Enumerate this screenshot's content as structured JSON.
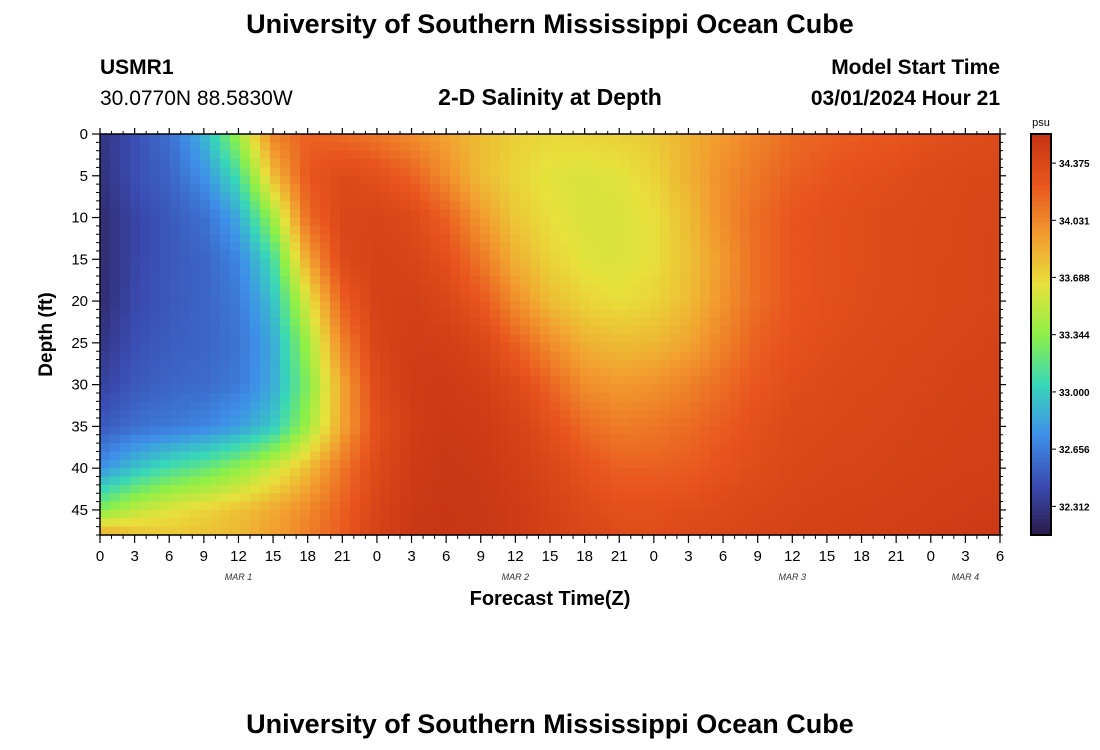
{
  "page": {
    "title_top": "University of Southern Mississippi Ocean Cube",
    "title_bottom": "University of Southern Mississippi Ocean Cube"
  },
  "header": {
    "station": "USMR1",
    "coords": "30.0770N  88.5830W",
    "plot_title": "2-D Salinity at Depth",
    "model_start_label": "Model Start Time",
    "model_start_value": "03/01/2024 Hour 21"
  },
  "chart_data": {
    "type": "heatmap",
    "title": "2-D Salinity at Depth",
    "xlabel": "Forecast Time(Z)",
    "ylabel": "Depth (ft)",
    "x_tick_labels": [
      "0",
      "3",
      "6",
      "9",
      "12",
      "15",
      "18",
      "21",
      "0",
      "3",
      "6",
      "9",
      "12",
      "15",
      "18",
      "21",
      "0",
      "3",
      "6",
      "9",
      "12",
      "15",
      "18",
      "21",
      "0",
      "3",
      "6"
    ],
    "date_labels": [
      {
        "label": "MAR 1",
        "at_hour": 12
      },
      {
        "label": "MAR 2",
        "at_hour": 36
      },
      {
        "label": "MAR 3",
        "at_hour": 60
      },
      {
        "label": "MAR 4",
        "at_hour": 75
      }
    ],
    "x_range_hours": [
      0,
      78
    ],
    "y_ticks": [
      0,
      5,
      10,
      15,
      20,
      25,
      30,
      35,
      40,
      45
    ],
    "y_range_ft": [
      0,
      48
    ],
    "colorbar": {
      "unit": "psu",
      "ticks": [
        34.375,
        34.031,
        33.688,
        33.344,
        33.0,
        32.656,
        32.312
      ],
      "tick_labels": [
        "34.375",
        "34.031",
        "33.688",
        "33.344",
        "33.000",
        "32.656",
        "32.312"
      ],
      "range": [
        32.14,
        34.55
      ]
    },
    "colormap": [
      "#2b1a4a",
      "#3a4cb2",
      "#3e8fe9",
      "#38d7b9",
      "#8ef046",
      "#e8e03b",
      "#f29a2e",
      "#e8551e",
      "#c53413"
    ],
    "x_hours": [
      0,
      3,
      6,
      9,
      12,
      15,
      18,
      21,
      24,
      27,
      30,
      33,
      36,
      39,
      42,
      45,
      48,
      51,
      54,
      57,
      60,
      63,
      66,
      69,
      72,
      75,
      78
    ],
    "y_depths_ft": [
      0,
      5,
      10,
      15,
      20,
      25,
      30,
      35,
      40,
      45,
      48
    ],
    "values_by_depth": [
      [
        32.3,
        32.45,
        32.6,
        32.9,
        33.4,
        34.05,
        34.2,
        34.15,
        34.1,
        34.0,
        33.9,
        33.8,
        33.72,
        33.68,
        33.7,
        33.72,
        33.75,
        33.85,
        33.95,
        34.05,
        34.15,
        34.2,
        34.22,
        34.25,
        34.3,
        34.32,
        34.35
      ],
      [
        32.28,
        32.45,
        32.55,
        32.75,
        33.1,
        33.8,
        34.25,
        34.35,
        34.3,
        34.2,
        34.0,
        33.8,
        33.7,
        33.62,
        33.6,
        33.62,
        33.7,
        33.85,
        34.0,
        34.1,
        34.2,
        34.25,
        34.3,
        34.32,
        34.35,
        34.37,
        34.38
      ],
      [
        32.25,
        32.4,
        32.5,
        32.6,
        32.85,
        33.4,
        34.15,
        34.38,
        34.4,
        34.35,
        34.2,
        33.95,
        33.75,
        33.65,
        33.6,
        33.6,
        33.65,
        33.8,
        34.0,
        34.15,
        34.25,
        34.3,
        34.32,
        34.35,
        34.36,
        34.38,
        34.4
      ],
      [
        32.25,
        32.4,
        32.5,
        32.55,
        32.7,
        33.1,
        33.9,
        34.35,
        34.42,
        34.4,
        34.3,
        34.1,
        33.85,
        33.7,
        33.62,
        33.6,
        33.65,
        33.78,
        33.95,
        34.15,
        34.25,
        34.3,
        34.32,
        34.35,
        34.37,
        34.38,
        34.4
      ],
      [
        32.25,
        32.42,
        32.5,
        32.55,
        32.65,
        32.95,
        33.6,
        34.2,
        34.42,
        34.44,
        34.38,
        34.25,
        34.0,
        33.8,
        33.7,
        33.65,
        33.7,
        33.8,
        33.98,
        34.15,
        34.25,
        34.3,
        34.33,
        34.35,
        34.37,
        34.38,
        34.4
      ],
      [
        32.3,
        32.45,
        32.52,
        32.55,
        32.62,
        32.85,
        33.4,
        34.05,
        34.4,
        34.46,
        34.45,
        34.38,
        34.2,
        34.0,
        33.85,
        33.8,
        33.82,
        33.9,
        34.05,
        34.2,
        34.28,
        34.32,
        34.35,
        34.37,
        34.38,
        34.4,
        34.42
      ],
      [
        32.38,
        32.5,
        32.55,
        32.58,
        32.65,
        32.85,
        33.3,
        33.9,
        34.35,
        34.47,
        34.48,
        34.45,
        34.35,
        34.18,
        34.0,
        33.95,
        33.98,
        34.05,
        34.15,
        34.25,
        34.32,
        34.35,
        34.37,
        34.38,
        34.4,
        34.42,
        34.43
      ],
      [
        32.5,
        32.6,
        32.65,
        32.7,
        32.8,
        32.98,
        33.4,
        33.9,
        34.3,
        34.46,
        34.5,
        34.48,
        34.42,
        34.3,
        34.15,
        34.08,
        34.1,
        34.15,
        34.22,
        34.3,
        34.35,
        34.37,
        34.38,
        34.4,
        34.42,
        34.43,
        34.44
      ],
      [
        32.75,
        32.95,
        33.1,
        33.2,
        33.35,
        33.55,
        33.8,
        34.1,
        34.35,
        34.48,
        34.52,
        34.5,
        34.45,
        34.38,
        34.28,
        34.2,
        34.2,
        34.22,
        34.28,
        34.33,
        34.37,
        34.39,
        34.4,
        34.42,
        34.43,
        34.44,
        34.45
      ],
      [
        33.3,
        33.5,
        33.62,
        33.7,
        33.78,
        33.88,
        34.02,
        34.2,
        34.4,
        34.5,
        34.53,
        34.52,
        34.48,
        34.42,
        34.35,
        34.3,
        34.3,
        34.32,
        34.35,
        34.38,
        34.4,
        34.42,
        34.43,
        34.44,
        34.45,
        34.46,
        34.47
      ],
      [
        33.9,
        33.8,
        33.75,
        33.78,
        33.82,
        33.92,
        34.06,
        34.22,
        34.42,
        34.5,
        34.53,
        34.52,
        34.48,
        34.43,
        34.38,
        34.33,
        34.33,
        34.35,
        34.37,
        34.4,
        34.42,
        34.43,
        34.44,
        34.45,
        34.46,
        34.48,
        34.5
      ]
    ]
  }
}
